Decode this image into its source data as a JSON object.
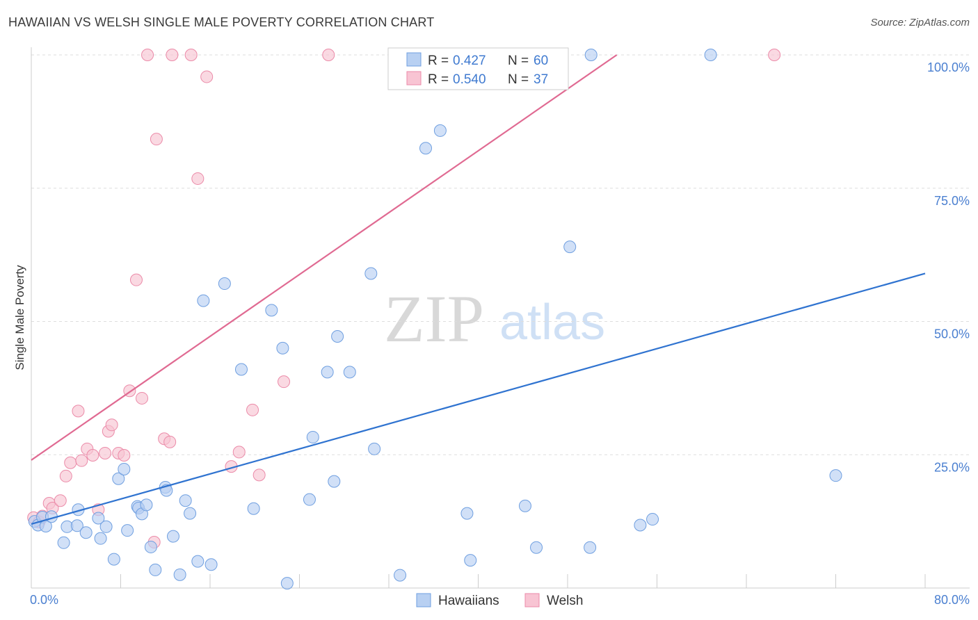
{
  "title": "HAWAIIAN VS WELSH SINGLE MALE POVERTY CORRELATION CHART",
  "source": "Source: ZipAtlas.com",
  "watermark": {
    "zip": "ZIP",
    "atlas": "atlas"
  },
  "legend": {
    "r_label": "R =",
    "n_label": "N =",
    "entries": [
      {
        "r": "0.427",
        "n": "60"
      },
      {
        "r": "0.540",
        "n": "37"
      }
    ]
  },
  "bottom_legend": [
    "Hawaiians",
    "Welsh"
  ],
  "colors": {
    "hawaiians_fill": "#b8d0f2",
    "hawaiians_stroke": "#6f9fe0",
    "hawaiians_line": "#2f73d0",
    "welsh_fill": "#f8c4d3",
    "welsh_stroke": "#eb8aa8",
    "welsh_line": "#e06a92",
    "grid": "#dddddd",
    "tick_text": "#4a7fd0"
  },
  "chart_data": {
    "type": "scatter",
    "title": "HAWAIIAN VS WELSH SINGLE MALE POVERTY CORRELATION CHART",
    "xlabel": "",
    "ylabel": "Single Male Poverty",
    "xlim": [
      0,
      80
    ],
    "ylim": [
      0,
      100
    ],
    "x_tick_labels": [
      "0.0%",
      "80.0%"
    ],
    "y_ticks": [
      25,
      50,
      75,
      100
    ],
    "y_tick_labels": [
      "25.0%",
      "50.0%",
      "75.0%",
      "100.0%"
    ],
    "grid": true,
    "legend_position": "top-center",
    "series": [
      {
        "name": "Hawaiians",
        "r": 0.427,
        "n": 60,
        "trend": [
          [
            0,
            12.0
          ],
          [
            80,
            59.0
          ]
        ],
        "points": [
          [
            0.3,
            12.5
          ],
          [
            0.6,
            11.8
          ],
          [
            1.0,
            13.3
          ],
          [
            1.3,
            11.6
          ],
          [
            1.8,
            13.4
          ],
          [
            2.9,
            8.5
          ],
          [
            3.2,
            11.5
          ],
          [
            4.1,
            11.7
          ],
          [
            4.2,
            14.7
          ],
          [
            4.9,
            10.4
          ],
          [
            6.0,
            13.1
          ],
          [
            6.2,
            9.3
          ],
          [
            6.7,
            11.5
          ],
          [
            7.4,
            5.4
          ],
          [
            7.8,
            20.5
          ],
          [
            8.3,
            22.3
          ],
          [
            8.6,
            10.8
          ],
          [
            9.5,
            15.3
          ],
          [
            9.6,
            15.0
          ],
          [
            9.9,
            13.9
          ],
          [
            10.3,
            15.6
          ],
          [
            10.7,
            7.7
          ],
          [
            11.1,
            3.4
          ],
          [
            12.0,
            18.9
          ],
          [
            12.1,
            18.3
          ],
          [
            12.7,
            9.7
          ],
          [
            13.3,
            2.5
          ],
          [
            13.8,
            16.4
          ],
          [
            14.2,
            14.0
          ],
          [
            14.9,
            5.0
          ],
          [
            15.4,
            53.9
          ],
          [
            16.1,
            4.4
          ],
          [
            17.3,
            57.1
          ],
          [
            18.8,
            41.0
          ],
          [
            19.9,
            14.9
          ],
          [
            21.5,
            52.1
          ],
          [
            22.5,
            45.0
          ],
          [
            22.9,
            0.9
          ],
          [
            24.9,
            16.6
          ],
          [
            25.2,
            28.3
          ],
          [
            26.5,
            40.5
          ],
          [
            27.1,
            20.0
          ],
          [
            27.4,
            47.2
          ],
          [
            28.5,
            40.5
          ],
          [
            30.4,
            59.0
          ],
          [
            30.7,
            26.1
          ],
          [
            33.0,
            2.4
          ],
          [
            35.3,
            82.5
          ],
          [
            36.6,
            85.8
          ],
          [
            39.0,
            14.0
          ],
          [
            39.3,
            5.2
          ],
          [
            44.2,
            15.4
          ],
          [
            45.2,
            7.6
          ],
          [
            48.2,
            64.0
          ],
          [
            50.0,
            7.6
          ],
          [
            50.1,
            100.0
          ],
          [
            54.5,
            11.8
          ],
          [
            55.6,
            12.9
          ],
          [
            60.8,
            100.0
          ],
          [
            72.0,
            21.1
          ]
        ]
      },
      {
        "name": "Welsh",
        "r": 0.54,
        "n": 37,
        "trend": [
          [
            0,
            24.0
          ],
          [
            52.4,
            100.0
          ]
        ],
        "points": [
          [
            0.2,
            13.2
          ],
          [
            0.7,
            12.4
          ],
          [
            1.0,
            13.5
          ],
          [
            1.6,
            15.9
          ],
          [
            1.9,
            15.0
          ],
          [
            2.6,
            16.4
          ],
          [
            3.1,
            21.0
          ],
          [
            3.5,
            23.5
          ],
          [
            4.2,
            33.2
          ],
          [
            4.5,
            23.9
          ],
          [
            5.0,
            26.1
          ],
          [
            5.5,
            24.9
          ],
          [
            6.0,
            14.7
          ],
          [
            6.6,
            25.3
          ],
          [
            6.9,
            29.4
          ],
          [
            7.2,
            30.6
          ],
          [
            7.8,
            25.3
          ],
          [
            8.3,
            24.9
          ],
          [
            8.8,
            37.0
          ],
          [
            9.4,
            57.8
          ],
          [
            9.9,
            35.6
          ],
          [
            10.4,
            100.0
          ],
          [
            11.0,
            8.6
          ],
          [
            11.2,
            84.2
          ],
          [
            11.9,
            28.0
          ],
          [
            12.4,
            27.4
          ],
          [
            12.6,
            100.0
          ],
          [
            14.3,
            100.0
          ],
          [
            14.9,
            76.8
          ],
          [
            15.7,
            95.9
          ],
          [
            17.9,
            22.8
          ],
          [
            18.6,
            25.5
          ],
          [
            19.8,
            33.4
          ],
          [
            20.4,
            21.2
          ],
          [
            22.6,
            38.7
          ],
          [
            26.6,
            100.0
          ],
          [
            66.5,
            100.0
          ]
        ]
      }
    ]
  }
}
